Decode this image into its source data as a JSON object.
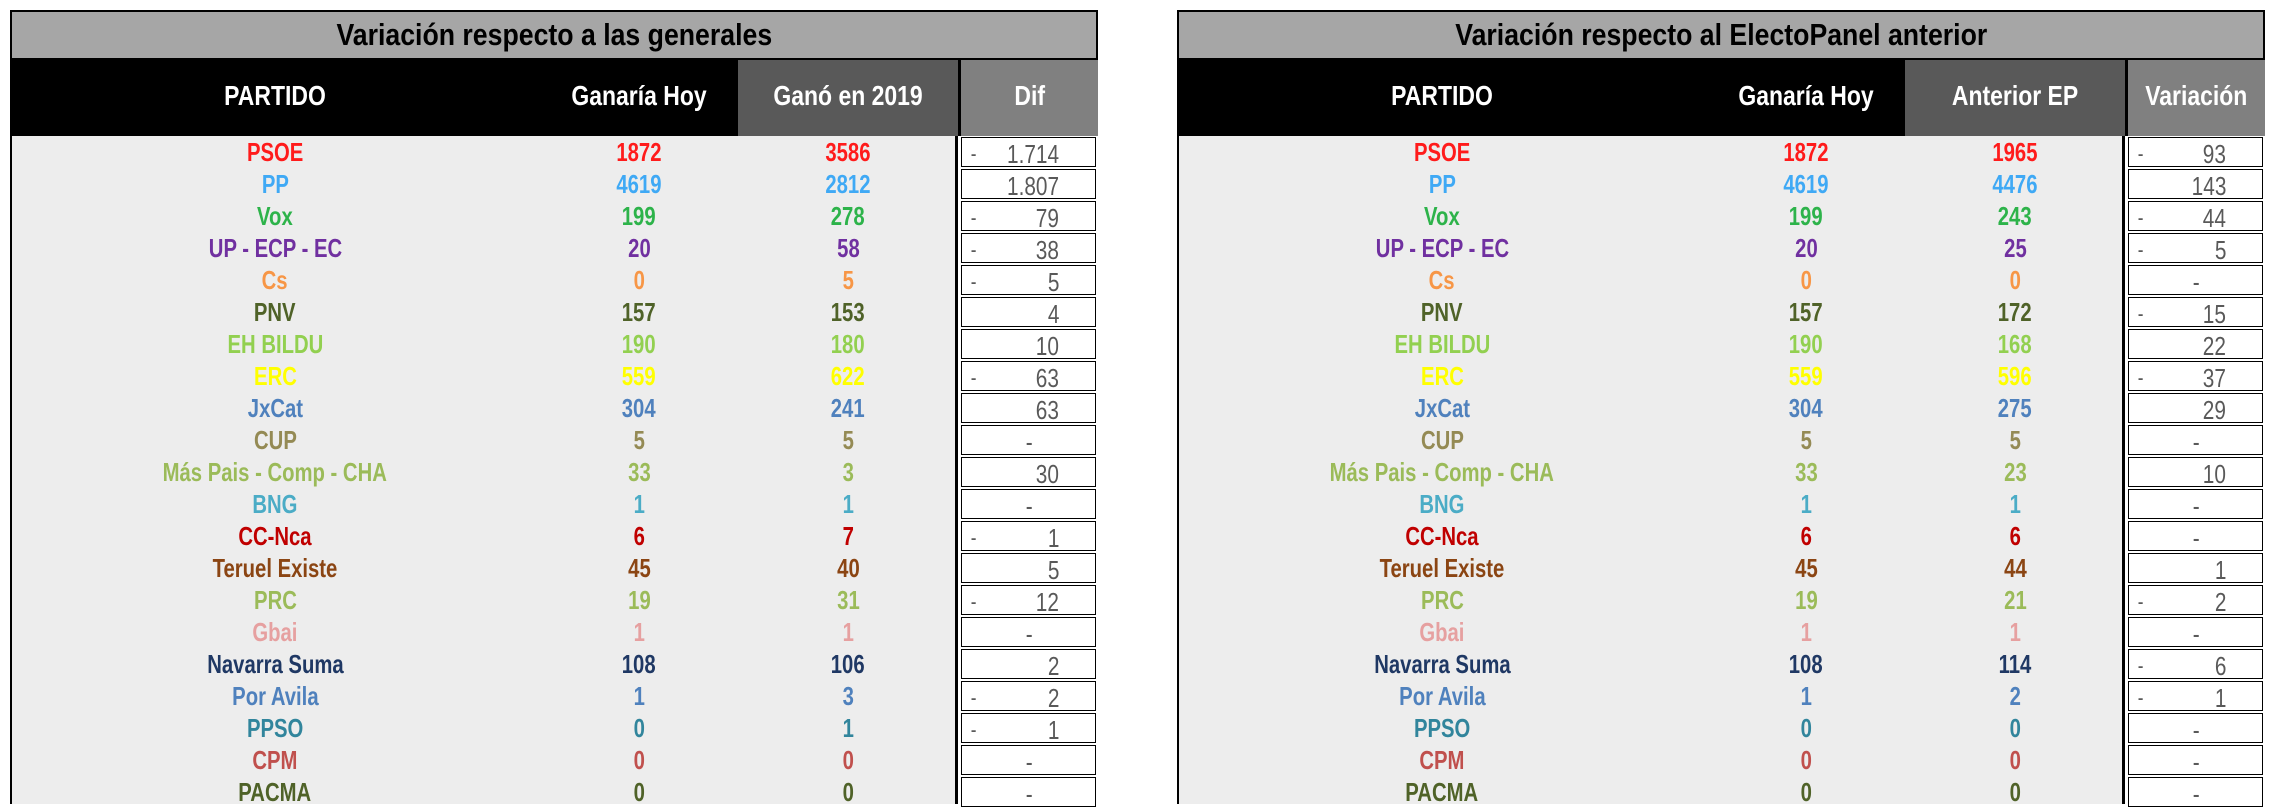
{
  "colors": {
    "PSOE": "#ff1b1b",
    "PP": "#3fa9f5",
    "Vox": "#2db34a",
    "UP - ECP - EC": "#7030a0",
    "Cs": "#f79646",
    "PNV": "#4f6228",
    "EH BILDU": "#92d050",
    "ERC": "#ffff00",
    "JxCat": "#4f81bd",
    "CUP": "#948a54",
    "Más Pais - Comp - CHA": "#9bbb59",
    "BNG": "#4bacc6",
    "CC-Nca": "#c00000",
    "Teruel Existe": "#8b4513",
    "PRC": "#9bbb59",
    "Gbai": "#e6a0a0",
    "Navarra Suma": "#1f3864",
    "Por Avila": "#4f81bd",
    "PPSO": "#31859c",
    "CPM": "#c0504d",
    "PACMA": "#4f6228"
  },
  "left": {
    "title": "Variación respecto a las generales",
    "headers": {
      "party": "PARTIDO",
      "today": "Ganaría Hoy",
      "prev": "Ganó en 2019",
      "diff": "Dif"
    },
    "rows": [
      {
        "party": "PSOE",
        "today": "1872",
        "prev": "3586",
        "diff": "1.714",
        "neg": true
      },
      {
        "party": "PP",
        "today": "4619",
        "prev": "2812",
        "diff": "1.807",
        "neg": false
      },
      {
        "party": "Vox",
        "today": "199",
        "prev": "278",
        "diff": "79",
        "neg": true
      },
      {
        "party": "UP - ECP - EC",
        "today": "20",
        "prev": "58",
        "diff": "38",
        "neg": true
      },
      {
        "party": "Cs",
        "today": "0",
        "prev": "5",
        "diff": "5",
        "neg": true
      },
      {
        "party": "PNV",
        "today": "157",
        "prev": "153",
        "diff": "4",
        "neg": false
      },
      {
        "party": "EH BILDU",
        "today": "190",
        "prev": "180",
        "diff": "10",
        "neg": false
      },
      {
        "party": "ERC",
        "today": "559",
        "prev": "622",
        "diff": "63",
        "neg": true
      },
      {
        "party": "JxCat",
        "today": "304",
        "prev": "241",
        "diff": "63",
        "neg": false
      },
      {
        "party": "CUP",
        "today": "5",
        "prev": "5",
        "diff": "-",
        "neg": false
      },
      {
        "party": "Más Pais - Comp - CHA",
        "today": "33",
        "prev": "3",
        "diff": "30",
        "neg": false
      },
      {
        "party": "BNG",
        "today": "1",
        "prev": "1",
        "diff": "-",
        "neg": false
      },
      {
        "party": "CC-Nca",
        "today": "6",
        "prev": "7",
        "diff": "1",
        "neg": true
      },
      {
        "party": "Teruel Existe",
        "today": "45",
        "prev": "40",
        "diff": "5",
        "neg": false
      },
      {
        "party": "PRC",
        "today": "19",
        "prev": "31",
        "diff": "12",
        "neg": true
      },
      {
        "party": "Gbai",
        "today": "1",
        "prev": "1",
        "diff": "-",
        "neg": false
      },
      {
        "party": "Navarra Suma",
        "today": "108",
        "prev": "106",
        "diff": "2",
        "neg": false
      },
      {
        "party": "Por Avila",
        "today": "1",
        "prev": "3",
        "diff": "2",
        "neg": true
      },
      {
        "party": "PPSO",
        "today": "0",
        "prev": "1",
        "diff": "1",
        "neg": true
      },
      {
        "party": "CPM",
        "today": "0",
        "prev": "0",
        "diff": "-",
        "neg": false
      },
      {
        "party": "PACMA",
        "today": "0",
        "prev": "0",
        "diff": "-",
        "neg": false
      }
    ]
  },
  "right": {
    "title": "Variación respecto al ElectoPanel anterior",
    "headers": {
      "party": "PARTIDO",
      "today": "Ganaría Hoy",
      "prev": "Anterior EP",
      "diff": "Variación"
    },
    "rows": [
      {
        "party": "PSOE",
        "today": "1872",
        "prev": "1965",
        "diff": "93",
        "neg": true
      },
      {
        "party": "PP",
        "today": "4619",
        "prev": "4476",
        "diff": "143",
        "neg": false
      },
      {
        "party": "Vox",
        "today": "199",
        "prev": "243",
        "diff": "44",
        "neg": true
      },
      {
        "party": "UP - ECP - EC",
        "today": "20",
        "prev": "25",
        "diff": "5",
        "neg": true
      },
      {
        "party": "Cs",
        "today": "0",
        "prev": "0",
        "diff": "-",
        "neg": false
      },
      {
        "party": "PNV",
        "today": "157",
        "prev": "172",
        "diff": "15",
        "neg": true
      },
      {
        "party": "EH BILDU",
        "today": "190",
        "prev": "168",
        "diff": "22",
        "neg": false
      },
      {
        "party": "ERC",
        "today": "559",
        "prev": "596",
        "diff": "37",
        "neg": true
      },
      {
        "party": "JxCat",
        "today": "304",
        "prev": "275",
        "diff": "29",
        "neg": false
      },
      {
        "party": "CUP",
        "today": "5",
        "prev": "5",
        "diff": "-",
        "neg": false
      },
      {
        "party": "Más Pais - Comp - CHA",
        "today": "33",
        "prev": "23",
        "diff": "10",
        "neg": false
      },
      {
        "party": "BNG",
        "today": "1",
        "prev": "1",
        "diff": "-",
        "neg": false
      },
      {
        "party": "CC-Nca",
        "today": "6",
        "prev": "6",
        "diff": "-",
        "neg": false
      },
      {
        "party": "Teruel Existe",
        "today": "45",
        "prev": "44",
        "diff": "1",
        "neg": false
      },
      {
        "party": "PRC",
        "today": "19",
        "prev": "21",
        "diff": "2",
        "neg": true
      },
      {
        "party": "Gbai",
        "today": "1",
        "prev": "1",
        "diff": "-",
        "neg": false
      },
      {
        "party": "Navarra Suma",
        "today": "108",
        "prev": "114",
        "diff": "6",
        "neg": true
      },
      {
        "party": "Por Avila",
        "today": "1",
        "prev": "2",
        "diff": "1",
        "neg": true
      },
      {
        "party": "PPSO",
        "today": "0",
        "prev": "0",
        "diff": "-",
        "neg": false
      },
      {
        "party": "CPM",
        "today": "0",
        "prev": "0",
        "diff": "-",
        "neg": false
      },
      {
        "party": "PACMA",
        "today": "0",
        "prev": "0",
        "diff": "-",
        "neg": false
      }
    ]
  }
}
